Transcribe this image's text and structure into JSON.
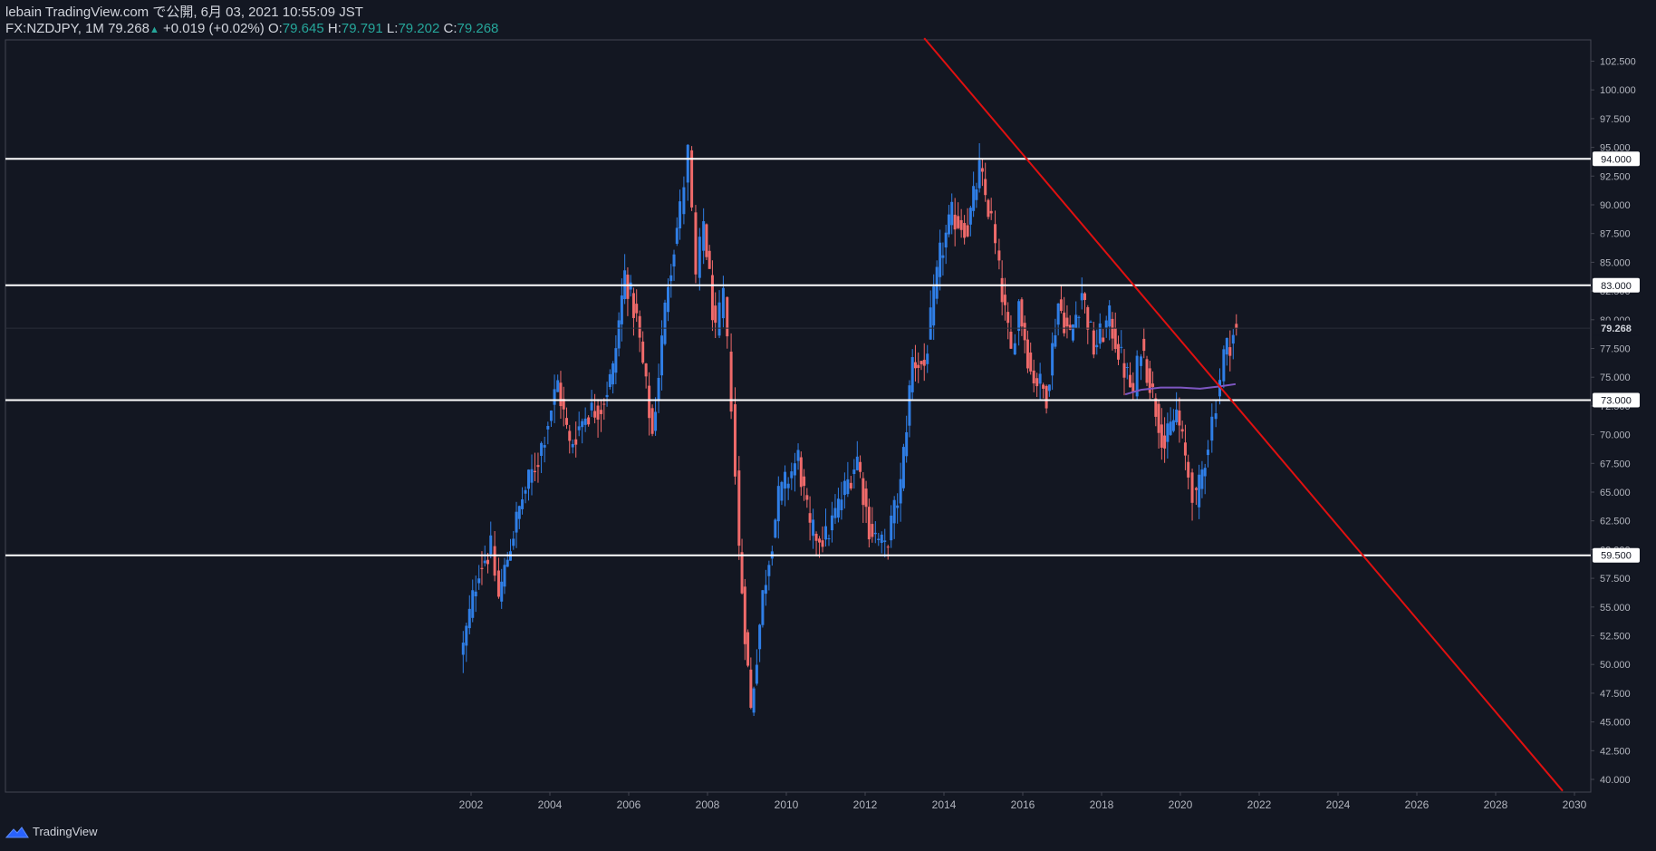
{
  "header": {
    "line1": "lebain TradingView.com で公開, 6月 03, 2021 10:55:09 JST",
    "symbol": "FX:NZDJPY, 1M 79.268",
    "change_arrow": "▲",
    "change": "+0.019 (+0.02%)",
    "o_label": "O:",
    "o_value": "79.645",
    "h_label": "H:",
    "h_value": "79.791",
    "l_label": "L:",
    "l_value": "79.202",
    "c_label": "C:",
    "c_value": "79.268"
  },
  "brand": {
    "name": "TradingView",
    "icon": "tradingview-logo-icon"
  },
  "colors": {
    "background": "#131722",
    "up": "#2f7ee6",
    "down": "#ef6a6a",
    "trendline": "#e01010",
    "levels": "#ffffff",
    "ma": "#7e57c2"
  },
  "chart_data": {
    "type": "candlestick",
    "symbol": "FX:NZDJPY",
    "interval": "1M",
    "ylim": [
      39,
      105
    ],
    "yticks": [
      "40.000",
      "42.500",
      "45.000",
      "47.500",
      "50.000",
      "52.500",
      "55.000",
      "57.500",
      "60.000",
      "62.500",
      "65.000",
      "67.500",
      "70.000",
      "72.500",
      "75.000",
      "77.500",
      "80.000",
      "82.500",
      "85.000",
      "87.500",
      "90.000",
      "92.500",
      "95.000",
      "97.500",
      "100.000",
      "102.500"
    ],
    "xlim": [
      1990.3,
      2030.2
    ],
    "xticks": [
      "2002",
      "2004",
      "2006",
      "2008",
      "2010",
      "2012",
      "2014",
      "2016",
      "2018",
      "2020",
      "2022",
      "2024",
      "2026",
      "2028",
      "2030"
    ],
    "last_price": "79.268",
    "horizontal_levels": [
      "94.000",
      "83.000",
      "73.000",
      "59.500"
    ],
    "trendline": {
      "from": [
        2013.5,
        104.5
      ],
      "to": [
        2029.7,
        39.0
      ]
    },
    "moving_average": [
      [
        2018.6,
        73.5
      ],
      [
        2019.0,
        73.9
      ],
      [
        2019.5,
        74.1
      ],
      [
        2020.0,
        74.1
      ],
      [
        2020.5,
        74.0
      ],
      [
        2021.0,
        74.2
      ],
      [
        2021.4,
        74.4
      ]
    ],
    "anchors": [
      [
        2001.8,
        51.5
      ],
      [
        2002.2,
        58.5
      ],
      [
        2002.5,
        60.0
      ],
      [
        2002.7,
        55.8
      ],
      [
        2003.0,
        60.5
      ],
      [
        2003.3,
        64.5
      ],
      [
        2003.7,
        68.0
      ],
      [
        2004.2,
        74.5
      ],
      [
        2004.5,
        69.0
      ],
      [
        2004.9,
        71.8
      ],
      [
        2005.3,
        72.5
      ],
      [
        2005.6,
        75.5
      ],
      [
        2005.9,
        84.0
      ],
      [
        2006.2,
        80.0
      ],
      [
        2006.6,
        70.0
      ],
      [
        2007.0,
        83.5
      ],
      [
        2007.3,
        89.5
      ],
      [
        2007.5,
        94.5
      ],
      [
        2007.7,
        83.5
      ],
      [
        2007.9,
        88.5
      ],
      [
        2008.2,
        78.5
      ],
      [
        2008.4,
        82.0
      ],
      [
        2008.6,
        73.0
      ],
      [
        2008.8,
        60.0
      ],
      [
        2009.1,
        46.0
      ],
      [
        2009.4,
        56.0
      ],
      [
        2009.8,
        64.5
      ],
      [
        2010.3,
        68.0
      ],
      [
        2010.6,
        61.5
      ],
      [
        2011.0,
        61.0
      ],
      [
        2011.4,
        64.5
      ],
      [
        2011.8,
        68.0
      ],
      [
        2012.1,
        62.0
      ],
      [
        2012.5,
        60.0
      ],
      [
        2012.9,
        65.5
      ],
      [
        2013.2,
        76.5
      ],
      [
        2013.5,
        76.0
      ],
      [
        2013.9,
        85.5
      ],
      [
        2014.2,
        89.0
      ],
      [
        2014.6,
        88.0
      ],
      [
        2014.9,
        93.0
      ],
      [
        2015.2,
        88.5
      ],
      [
        2015.4,
        84.0
      ],
      [
        2015.7,
        77.0
      ],
      [
        2015.9,
        81.5
      ],
      [
        2016.2,
        75.5
      ],
      [
        2016.6,
        73.5
      ],
      [
        2016.9,
        81.5
      ],
      [
        2017.2,
        78.5
      ],
      [
        2017.5,
        82.5
      ],
      [
        2017.8,
        77.5
      ],
      [
        2018.2,
        80.0
      ],
      [
        2018.5,
        76.5
      ],
      [
        2018.8,
        73.5
      ],
      [
        2019.0,
        78.0
      ],
      [
        2019.3,
        73.5
      ],
      [
        2019.6,
        69.0
      ],
      [
        2019.9,
        72.0
      ],
      [
        2020.2,
        66.5
      ],
      [
        2020.4,
        64.0
      ],
      [
        2020.7,
        69.5
      ],
      [
        2020.9,
        73.0
      ],
      [
        2021.1,
        77.0
      ],
      [
        2021.42,
        79.27
      ]
    ]
  }
}
